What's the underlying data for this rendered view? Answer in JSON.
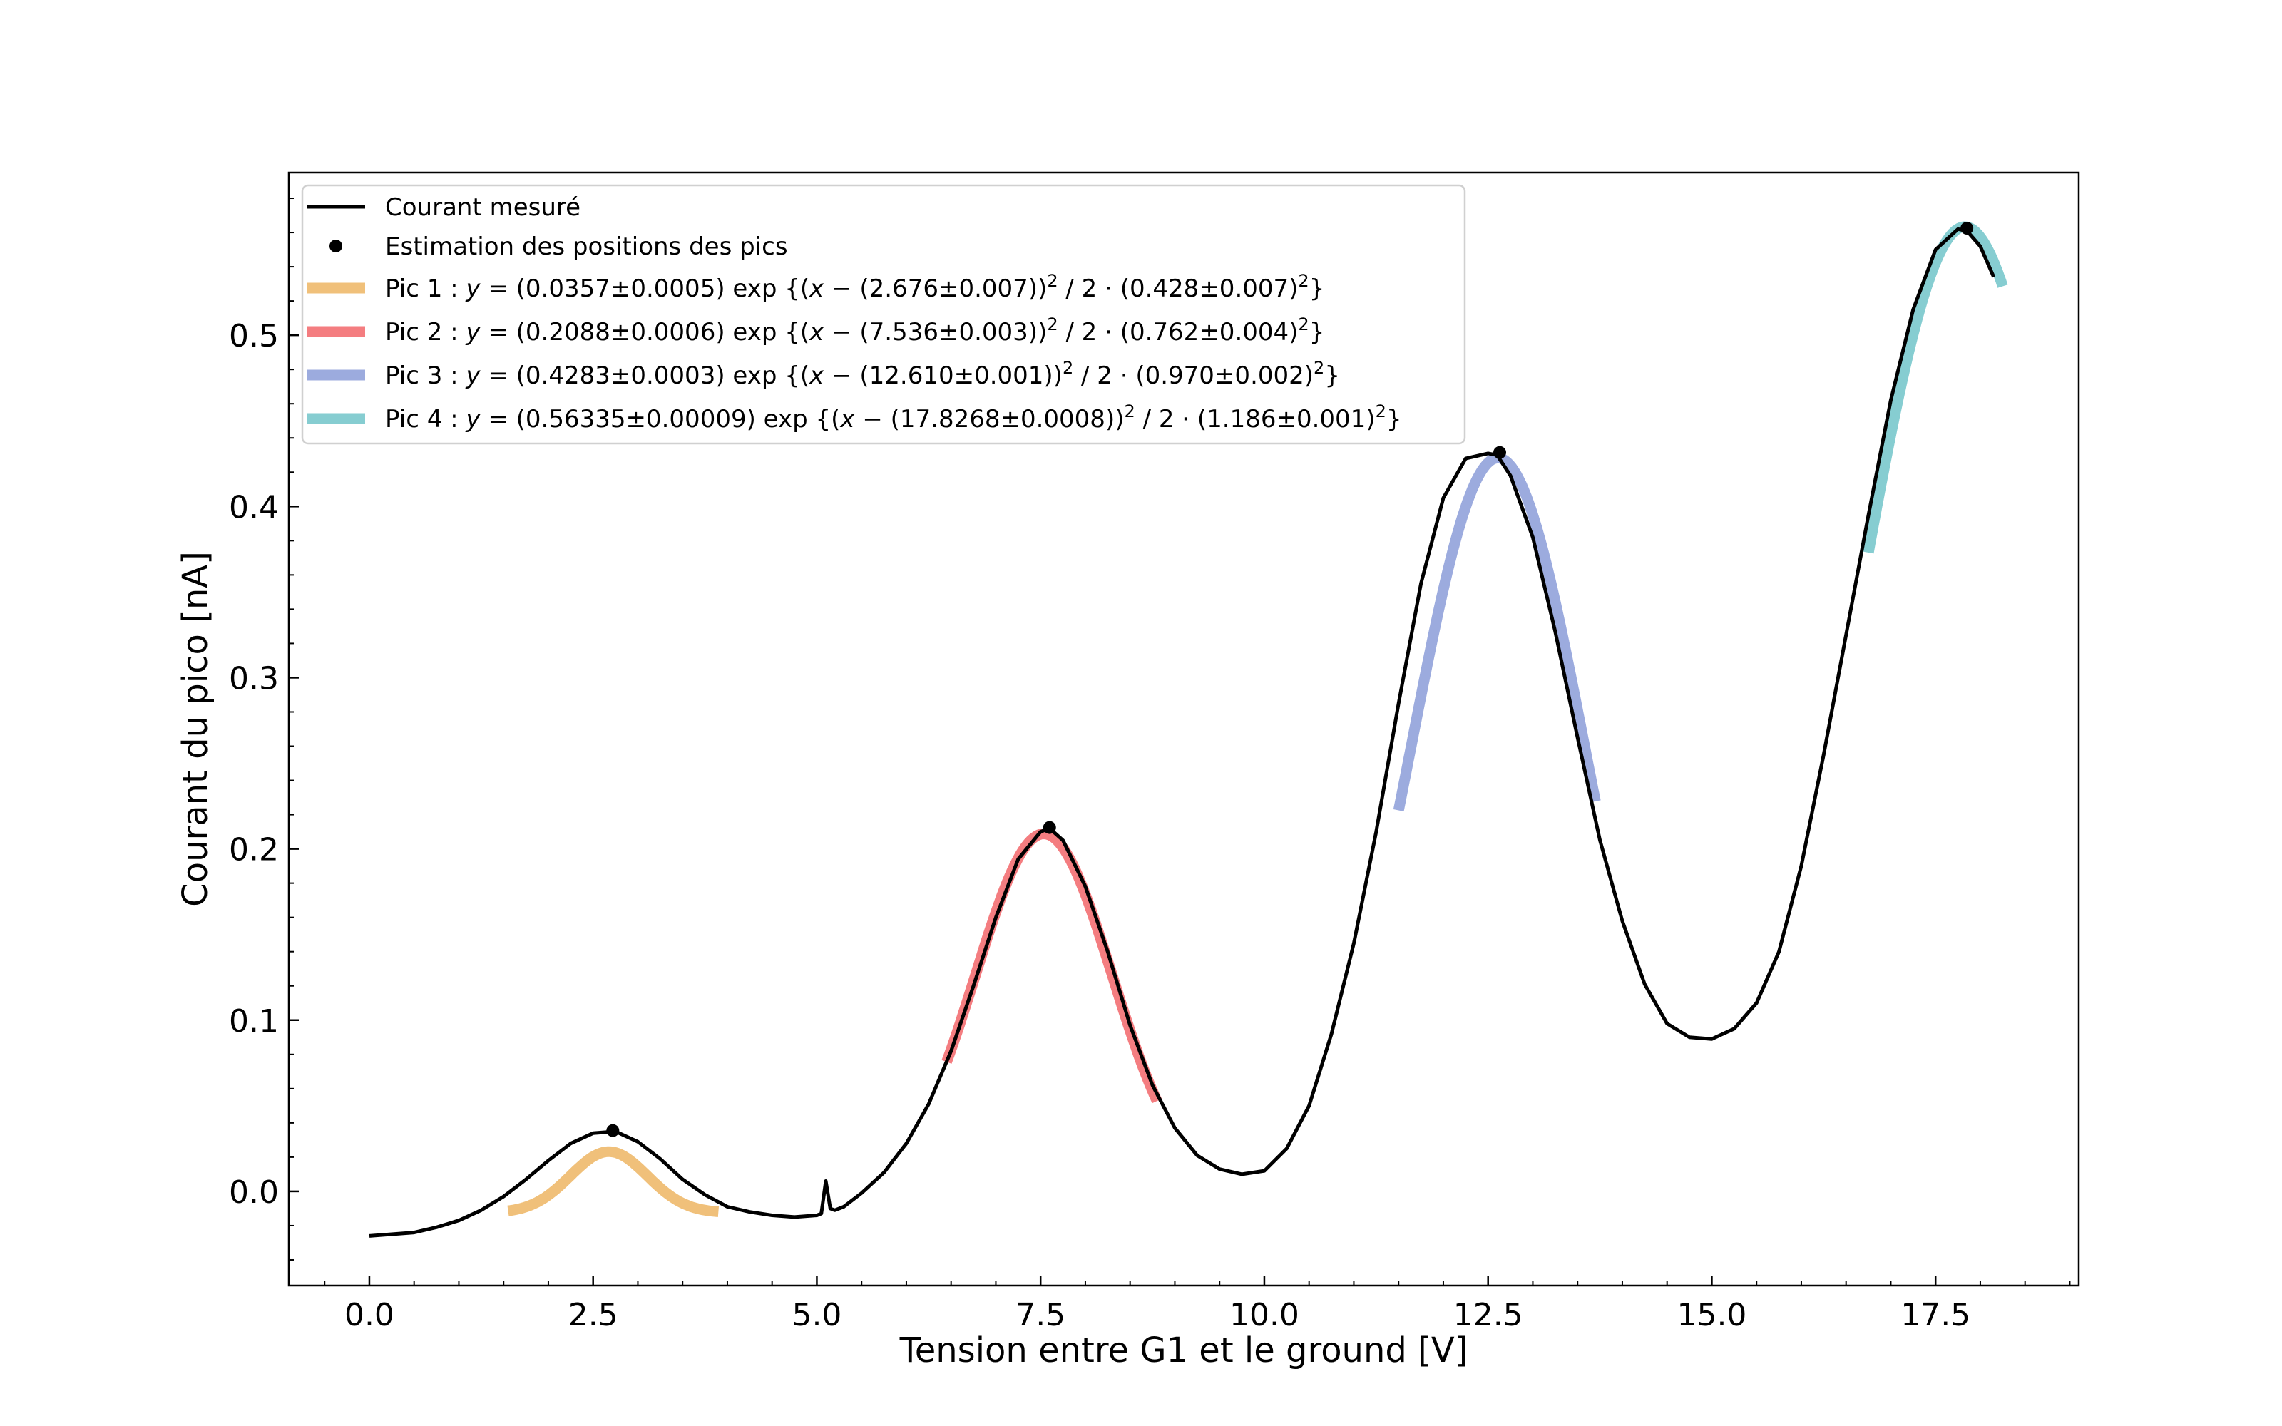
{
  "chart_data": {
    "type": "line",
    "xlabel": "Tension entre G1 et le ground [V]",
    "ylabel": "Courant du pico [nA]",
    "xlim": [
      -0.9,
      19.1
    ],
    "ylim": [
      -0.055,
      0.595
    ],
    "x_ticks": [
      0.0,
      2.5,
      5.0,
      7.5,
      10.0,
      12.5,
      15.0,
      17.5
    ],
    "x_tick_labels": [
      "0.0",
      "2.5",
      "5.0",
      "7.5",
      "10.0",
      "12.5",
      "15.0",
      "17.5"
    ],
    "y_ticks": [
      0.0,
      0.1,
      0.2,
      0.3,
      0.4,
      0.5
    ],
    "y_tick_labels": [
      "0.0",
      "0.1",
      "0.2",
      "0.3",
      "0.4",
      "0.5"
    ],
    "grid": false,
    "legend_position": "upper-left",
    "measured": {
      "name": "Courant mesuré",
      "color": "#000000",
      "x": [
        0.0,
        0.25,
        0.5,
        0.75,
        1.0,
        1.25,
        1.5,
        1.75,
        2.0,
        2.25,
        2.5,
        2.75,
        3.0,
        3.25,
        3.5,
        3.75,
        4.0,
        4.25,
        4.5,
        4.75,
        5.0,
        5.05,
        5.1,
        5.15,
        5.2,
        5.3,
        5.5,
        5.75,
        6.0,
        6.25,
        6.5,
        6.75,
        7.0,
        7.25,
        7.5,
        7.6,
        7.75,
        8.0,
        8.25,
        8.5,
        8.75,
        9.0,
        9.25,
        9.5,
        9.75,
        10.0,
        10.25,
        10.5,
        10.75,
        11.0,
        11.25,
        11.5,
        11.75,
        12.0,
        12.25,
        12.5,
        12.6,
        12.75,
        13.0,
        13.25,
        13.5,
        13.75,
        14.0,
        14.25,
        14.5,
        14.75,
        15.0,
        15.25,
        15.5,
        15.75,
        16.0,
        16.25,
        16.5,
        16.75,
        17.0,
        17.25,
        17.5,
        17.75,
        17.85,
        18.0,
        18.15
      ],
      "y": [
        -0.026,
        -0.025,
        -0.024,
        -0.021,
        -0.017,
        -0.011,
        -0.003,
        0.007,
        0.018,
        0.028,
        0.034,
        0.035,
        0.029,
        0.019,
        0.007,
        -0.002,
        -0.009,
        -0.012,
        -0.014,
        -0.015,
        -0.014,
        -0.013,
        0.006,
        -0.01,
        -0.011,
        -0.009,
        -0.001,
        0.011,
        0.028,
        0.051,
        0.082,
        0.12,
        0.16,
        0.194,
        0.21,
        0.212,
        0.205,
        0.178,
        0.14,
        0.097,
        0.062,
        0.037,
        0.021,
        0.013,
        0.01,
        0.012,
        0.025,
        0.05,
        0.092,
        0.145,
        0.21,
        0.285,
        0.355,
        0.405,
        0.428,
        0.431,
        0.43,
        0.418,
        0.382,
        0.327,
        0.265,
        0.205,
        0.158,
        0.121,
        0.098,
        0.09,
        0.089,
        0.095,
        0.11,
        0.14,
        0.19,
        0.255,
        0.325,
        0.395,
        0.462,
        0.515,
        0.55,
        0.562,
        0.561,
        0.552,
        0.534
      ]
    },
    "peaks": {
      "name": "Estimation des positions des pics",
      "color": "#000000",
      "x": [
        2.72,
        7.6,
        12.63,
        17.85
      ],
      "y": [
        0.0355,
        0.2125,
        0.4315,
        0.5625
      ]
    },
    "fits": [
      {
        "label_head": "Pic 1",
        "A": "0.0357",
        "A_err": "0.0005",
        "mu": "2.676",
        "mu_err": "0.007",
        "sigma": "0.428",
        "sigma_err": "0.007",
        "amplitude": 0.0357,
        "center": 2.676,
        "width": 0.428,
        "offset": -0.0125,
        "x_range": [
          1.55,
          3.9
        ],
        "color": "#f0c07a"
      },
      {
        "label_head": "Pic 2",
        "A": "0.2088",
        "A_err": "0.0006",
        "mu": "7.536",
        "mu_err": "0.003",
        "sigma": "0.762",
        "sigma_err": "0.004",
        "amplitude": 0.2088,
        "center": 7.536,
        "width": 0.762,
        "offset": 0.0,
        "x_range": [
          6.45,
          8.8
        ],
        "color": "#f47d80"
      },
      {
        "label_head": "Pic 3",
        "A": "0.4283",
        "A_err": "0.0003",
        "mu": "12.610",
        "mu_err": "0.001",
        "sigma": "0.970",
        "sigma_err": "0.002",
        "amplitude": 0.4283,
        "center": 12.61,
        "width": 0.97,
        "offset": 0.0,
        "x_range": [
          11.5,
          13.7
        ],
        "color": "#9cabde"
      },
      {
        "label_head": "Pic 4",
        "A": "0.56335",
        "A_err": "0.00009",
        "mu": "17.8268",
        "mu_err": "0.0008",
        "sigma": "1.186",
        "sigma_err": "0.001",
        "amplitude": 0.56335,
        "center": 17.8268,
        "width": 1.186,
        "offset": 0.0,
        "x_range": [
          16.75,
          18.25
        ],
        "color": "#86cdd1"
      }
    ]
  }
}
